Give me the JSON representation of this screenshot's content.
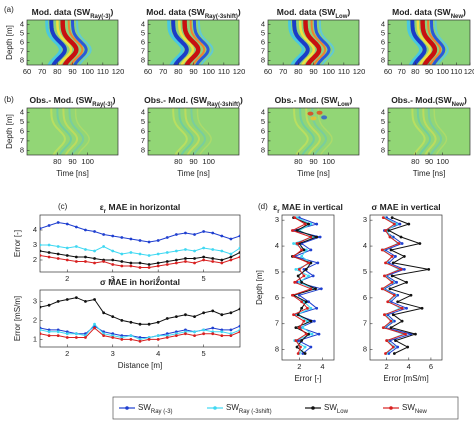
{
  "chart_data": [
    {
      "type": "heatmap",
      "label": "(a)",
      "title": [
        "Mod. data (SW",
        "Ray(-3)",
        ")"
      ],
      "ylabel": "Depth [m]",
      "xlim": [
        60,
        120
      ],
      "xticks": [
        60,
        70,
        80,
        90,
        100,
        110,
        120
      ],
      "ylim": [
        3.5,
        8.5
      ],
      "yticks": [
        4,
        5,
        6,
        7,
        8
      ],
      "y_reversed": true
    },
    {
      "type": "heatmap",
      "title": [
        "Mod. data (SW",
        "Ray(-3shift)",
        ")"
      ],
      "xlim": [
        60,
        120
      ],
      "xticks": [
        60,
        70,
        80,
        90,
        100,
        110,
        120
      ],
      "ylim": [
        3.5,
        8.5
      ],
      "yticks": [
        4,
        5,
        6,
        7,
        8
      ],
      "y_reversed": true
    },
    {
      "type": "heatmap",
      "title": [
        "Mod. data (SW",
        "Low",
        ")"
      ],
      "xlim": [
        60,
        120
      ],
      "xticks": [
        60,
        70,
        80,
        90,
        100,
        110,
        120
      ],
      "ylim": [
        3.5,
        8.5
      ],
      "yticks": [
        4,
        5,
        6,
        7,
        8
      ],
      "y_reversed": true
    },
    {
      "type": "heatmap",
      "title": [
        "Mod. data (SW",
        "New",
        ")"
      ],
      "xlim": [
        60,
        120
      ],
      "xticks": [
        60,
        70,
        80,
        90,
        100,
        110,
        120
      ],
      "ylim": [
        3.5,
        8.5
      ],
      "yticks": [
        4,
        5,
        6,
        7,
        8
      ],
      "y_reversed": true
    },
    {
      "type": "heatmap",
      "label": "(b)",
      "residual": true,
      "title": [
        "Obs.- Mod. (SW",
        "Ray(-3)",
        ")"
      ],
      "ylabel": "Depth [m]",
      "xlabel": "Time [ns]",
      "xlim": [
        60,
        120
      ],
      "xticks": [
        80,
        90,
        100
      ],
      "ylim": [
        3.5,
        8.5
      ],
      "yticks": [
        4,
        5,
        6,
        7,
        8
      ],
      "y_reversed": true
    },
    {
      "type": "heatmap",
      "residual": true,
      "title": [
        "Obs.- Mod. (SW",
        "Ray(-3shift)",
        ")"
      ],
      "xlabel": "Time [ns]",
      "xlim": [
        60,
        120
      ],
      "xticks": [
        80,
        90,
        100
      ],
      "ylim": [
        3.5,
        8.5
      ],
      "yticks": [
        4,
        5,
        6,
        7,
        8
      ],
      "y_reversed": true
    },
    {
      "type": "heatmap",
      "residual": true,
      "title": [
        "Obs.- Mod. (SW",
        "Low",
        ")"
      ],
      "xlabel": "Time [ns]",
      "xlim": [
        60,
        120
      ],
      "xticks": [
        80,
        90,
        100
      ],
      "ylim": [
        3.5,
        8.5
      ],
      "yticks": [
        4,
        5,
        6,
        7,
        8
      ],
      "y_reversed": true
    },
    {
      "type": "heatmap",
      "residual": true,
      "title": [
        "Obs.- Mod.(SW",
        "New",
        ")"
      ],
      "xlabel": "Time [ns]",
      "xlim": [
        60,
        120
      ],
      "xticks": [
        80,
        90,
        100
      ],
      "ylim": [
        3.5,
        8.5
      ],
      "yticks": [
        4,
        5,
        6,
        7,
        8
      ],
      "y_reversed": true
    },
    {
      "type": "line",
      "label": "(c)",
      "title": [
        "ε",
        "r",
        " MAE in horizontal"
      ],
      "ylabel": "Error [-]",
      "x": [
        1.4,
        1.6,
        1.8,
        2.0,
        2.2,
        2.4,
        2.6,
        2.8,
        3.0,
        3.2,
        3.4,
        3.6,
        3.8,
        4.0,
        4.2,
        4.4,
        4.6,
        4.8,
        5.0,
        5.2,
        5.4,
        5.6,
        5.8
      ],
      "xlim": [
        1.4,
        5.8
      ],
      "xticks": [
        2,
        3,
        4,
        5
      ],
      "ylim": [
        1.2,
        5
      ],
      "yticks": [
        2,
        3,
        4
      ],
      "series": [
        {
          "values": [
            4.1,
            4.3,
            4.5,
            4.4,
            4.2,
            4.0,
            3.9,
            3.7,
            3.6,
            3.5,
            3.4,
            3.3,
            3.2,
            3.3,
            3.5,
            3.7,
            3.8,
            3.7,
            3.9,
            3.8,
            3.6,
            3.4,
            3.6
          ]
        },
        {
          "values": [
            3.0,
            3.0,
            2.9,
            2.8,
            2.9,
            2.7,
            2.6,
            2.9,
            2.6,
            2.4,
            2.5,
            2.4,
            2.3,
            2.4,
            2.5,
            2.6,
            2.7,
            2.6,
            2.8,
            2.7,
            2.6,
            2.4,
            2.8
          ]
        },
        {
          "values": [
            2.6,
            2.5,
            2.4,
            2.3,
            2.2,
            2.2,
            2.1,
            2.0,
            2.0,
            1.9,
            1.8,
            1.8,
            1.7,
            1.8,
            1.9,
            2.0,
            2.1,
            2.1,
            2.2,
            2.1,
            2.0,
            2.2,
            2.5
          ]
        },
        {
          "values": [
            2.3,
            2.2,
            2.1,
            2.0,
            1.9,
            1.9,
            1.8,
            1.9,
            1.7,
            1.6,
            1.6,
            1.5,
            1.5,
            1.6,
            1.7,
            1.8,
            1.9,
            1.8,
            2.0,
            1.9,
            1.8,
            2.0,
            2.2
          ]
        }
      ]
    },
    {
      "type": "line",
      "title": [
        "σ MAE in horizontal"
      ],
      "ylabel": "Error [mS/m]",
      "xlabel": "Distance [m]",
      "x": [
        1.4,
        1.6,
        1.8,
        2.0,
        2.2,
        2.4,
        2.6,
        2.8,
        3.0,
        3.2,
        3.4,
        3.6,
        3.8,
        4.0,
        4.2,
        4.4,
        4.6,
        4.8,
        5.0,
        5.2,
        5.4,
        5.6,
        5.8
      ],
      "xlim": [
        1.4,
        5.8
      ],
      "xticks": [
        2,
        3,
        4,
        5
      ],
      "ylim": [
        0.6,
        3.6
      ],
      "yticks": [
        1,
        2,
        3
      ],
      "series": [
        {
          "values": [
            1.6,
            1.5,
            1.5,
            1.4,
            1.3,
            1.3,
            1.7,
            1.4,
            1.3,
            1.2,
            1.2,
            1.1,
            1.1,
            1.2,
            1.3,
            1.4,
            1.5,
            1.4,
            1.5,
            1.6,
            1.5,
            1.5,
            1.7
          ]
        },
        {
          "values": [
            1.5,
            1.4,
            1.4,
            1.3,
            1.3,
            1.2,
            1.8,
            1.3,
            1.2,
            1.1,
            1.2,
            1.0,
            1.1,
            1.2,
            1.2,
            1.3,
            1.4,
            1.4,
            1.5,
            1.4,
            1.4,
            1.3,
            1.5
          ]
        },
        {
          "values": [
            2.7,
            2.8,
            3.0,
            3.1,
            3.2,
            3.0,
            3.1,
            2.4,
            2.2,
            2.0,
            1.9,
            1.8,
            1.8,
            1.9,
            2.1,
            2.2,
            2.3,
            2.2,
            2.4,
            2.5,
            2.3,
            2.4,
            2.6
          ]
        },
        {
          "values": [
            1.3,
            1.2,
            1.2,
            1.1,
            1.1,
            1.1,
            1.6,
            1.2,
            1.1,
            1.0,
            1.0,
            0.9,
            1.0,
            1.0,
            1.1,
            1.2,
            1.3,
            1.2,
            1.3,
            1.3,
            1.2,
            1.2,
            1.4
          ]
        }
      ]
    },
    {
      "type": "line",
      "orientation": "horizontal",
      "label": "(d)",
      "title": [
        "ε",
        "r",
        " MAE in vertical"
      ],
      "ylabel": "Depth [m]",
      "xlabel": "Error [-]",
      "y": [
        2.9,
        3.15,
        3.4,
        3.65,
        3.9,
        4.15,
        4.4,
        4.65,
        4.9,
        5.15,
        5.4,
        5.65,
        5.9,
        6.15,
        6.4,
        6.65,
        6.9,
        7.15,
        7.4,
        7.65,
        7.9,
        8.15
      ],
      "xlim": [
        0.5,
        5
      ],
      "xticks": [
        2,
        4
      ],
      "ylim": [
        2.8,
        8.4
      ],
      "yticks": [
        3,
        4,
        5,
        6,
        7,
        8
      ],
      "y_reversed": true,
      "series": [
        {
          "values": [
            2.0,
            3.5,
            1.5,
            3.8,
            2.2,
            3.0,
            1.6,
            3.6,
            2.4,
            3.2,
            1.8,
            3.9,
            2.0,
            2.8,
            3.5,
            1.7,
            3.3,
            2.1,
            3.7,
            1.9,
            3.0,
            2.3
          ]
        },
        {
          "values": [
            1.8,
            3.0,
            2.0,
            3.2,
            1.5,
            2.6,
            2.2,
            3.0,
            1.7,
            2.8,
            2.0,
            3.2,
            1.6,
            2.4,
            3.0,
            1.8,
            2.7,
            2.3,
            3.1,
            1.6,
            2.5,
            2.0
          ]
        },
        {
          "values": [
            1.5,
            2.8,
            1.8,
            3.5,
            2.0,
            2.4,
            1.4,
            3.0,
            2.6,
            1.9,
            2.2,
            3.4,
            1.5,
            2.6,
            2.2,
            1.9,
            3.0,
            1.7,
            2.8,
            2.2,
            1.8,
            2.5
          ]
        },
        {
          "values": [
            1.6,
            2.5,
            1.4,
            3.0,
            1.8,
            2.2,
            1.5,
            2.8,
            2.0,
            2.4,
            1.6,
            3.0,
            1.4,
            2.2,
            2.7,
            1.5,
            2.4,
            2.0,
            2.6,
            1.7,
            2.1,
            1.9
          ]
        }
      ]
    },
    {
      "type": "line",
      "orientation": "horizontal",
      "title": [
        "σ MAE in vertical"
      ],
      "xlabel": "Error [mS/m]",
      "y": [
        2.9,
        3.15,
        3.4,
        3.65,
        3.9,
        4.15,
        4.4,
        4.65,
        4.9,
        5.15,
        5.4,
        5.65,
        5.9,
        6.15,
        6.4,
        6.65,
        6.9,
        7.15,
        7.4,
        7.65,
        7.9,
        8.15
      ],
      "xlim": [
        0.5,
        7
      ],
      "xticks": [
        2,
        4,
        6
      ],
      "ylim": [
        2.8,
        8.4
      ],
      "yticks": [
        3,
        4,
        5,
        6,
        7,
        8
      ],
      "y_reversed": true,
      "series": [
        {
          "values": [
            2.0,
            3.2,
            1.8,
            2.6,
            3.4,
            1.9,
            2.8,
            2.2,
            3.6,
            2.0,
            2.9,
            1.8,
            3.0,
            2.4,
            3.8,
            2.1,
            2.7,
            1.9,
            4.2,
            2.3,
            3.0,
            2.2
          ]
        },
        {
          "values": [
            1.8,
            2.9,
            2.0,
            2.4,
            3.0,
            1.7,
            2.5,
            2.0,
            3.1,
            1.9,
            2.6,
            1.7,
            2.8,
            2.2,
            3.2,
            1.9,
            2.5,
            1.8,
            3.5,
            2.1,
            2.7,
            2.0
          ]
        },
        {
          "values": [
            2.5,
            4.0,
            2.2,
            3.3,
            5.0,
            2.4,
            3.6,
            2.6,
            5.8,
            2.5,
            3.8,
            2.3,
            4.2,
            3.0,
            5.2,
            2.6,
            3.4,
            2.4,
            4.6,
            2.8,
            3.9,
            2.7
          ]
        },
        {
          "values": [
            1.7,
            2.7,
            1.9,
            2.3,
            3.1,
            1.6,
            2.5,
            1.9,
            3.3,
            1.8,
            2.5,
            1.6,
            2.7,
            2.1,
            3.4,
            1.8,
            2.4,
            1.7,
            3.7,
            2.0,
            2.6,
            1.9
          ]
        }
      ]
    }
  ],
  "legend": {
    "series": [
      {
        "name": [
          "SW",
          "Ray (-3)"
        ],
        "color": "#1f3fd0"
      },
      {
        "name": [
          "SW",
          "Ray (-3shift)"
        ],
        "color": "#3fd8f2"
      },
      {
        "name": [
          "SW",
          "Low"
        ],
        "color": "#111111"
      },
      {
        "name": [
          "SW",
          "New"
        ],
        "color": "#d82020"
      }
    ]
  }
}
